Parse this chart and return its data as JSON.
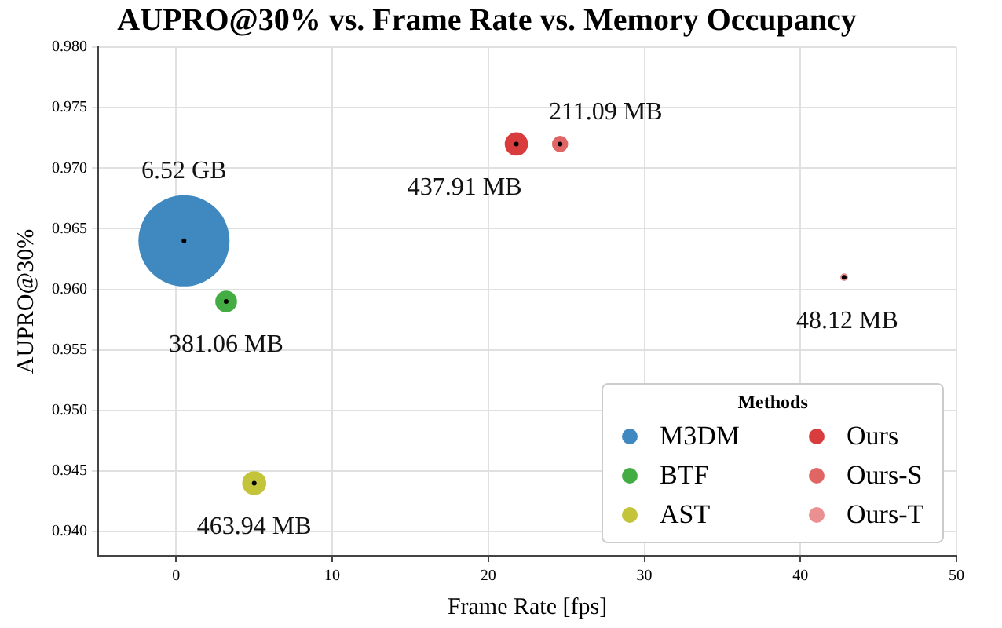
{
  "chart_data": {
    "type": "bubble",
    "title": "AUPRO@30% vs. Frame Rate vs. Memory Occupancy",
    "xlabel": "Frame Rate [fps]",
    "ylabel": "AUPRO@30%",
    "legend_title": "Methods",
    "legend": "bottom right",
    "grid": true,
    "marker": "circle",
    "xlim": [
      -5,
      50
    ],
    "xticks": [
      0,
      10,
      20,
      30,
      40,
      50
    ],
    "ylim": [
      0.938,
      0.98
    ],
    "yticks": [
      {
        "value": 0.94,
        "label": "0.940"
      },
      {
        "value": 0.945,
        "label": "0.945"
      },
      {
        "value": 0.95,
        "label": "0.950"
      },
      {
        "value": 0.955,
        "label": "0.955"
      },
      {
        "value": 0.96,
        "label": "0.960"
      },
      {
        "value": 0.965,
        "label": "0.965"
      },
      {
        "value": 0.97,
        "label": "0.970"
      },
      {
        "value": 0.975,
        "label": "0.975"
      },
      {
        "value": 0.98,
        "label": "0.980"
      }
    ],
    "series": [
      {
        "name": "M3DM",
        "color": "#3f88c0",
        "x": [
          0.5
        ],
        "values": [
          0.964
        ],
        "sizes": [
          1
        ]
      },
      {
        "name": "BTF",
        "color": "#43ad43",
        "x": [
          3.2
        ],
        "values": [
          0.959
        ],
        "sizes": [
          0.057
        ]
      },
      {
        "name": "AST",
        "color": "#c4c43a",
        "x": [
          5
        ],
        "values": [
          0.944
        ],
        "sizes": [
          0.0695
        ]
      },
      {
        "name": "Ours",
        "color": "#d83c3d",
        "x": [
          21.8
        ],
        "values": [
          0.972
        ],
        "sizes": [
          0.0656
        ]
      },
      {
        "name": "Ours-S",
        "color": "#e06666",
        "x": [
          24.6
        ],
        "values": [
          0.972
        ],
        "sizes": [
          0.0316
        ]
      },
      {
        "name": "Ours-T",
        "color": "#ea9090",
        "x": [
          42.8
        ],
        "values": [
          0.961
        ],
        "sizes": [
          0.0072
        ]
      }
    ],
    "annotations": [
      {
        "text": "6.52 GB",
        "x": 0.5,
        "y": 0.964
      },
      {
        "text": "381.06 MB",
        "x": 3.2,
        "y": 0.959
      },
      {
        "text": "463.94 MB",
        "x": 5,
        "y": 0.944
      },
      {
        "text": "437.91 MB",
        "x": 21.8,
        "y": 0.972
      },
      {
        "text": "211.09 MB",
        "x": 24.6,
        "y": 0.972
      },
      {
        "text": "48.12 MB",
        "x": 42.8,
        "y": 0.961
      }
    ]
  }
}
